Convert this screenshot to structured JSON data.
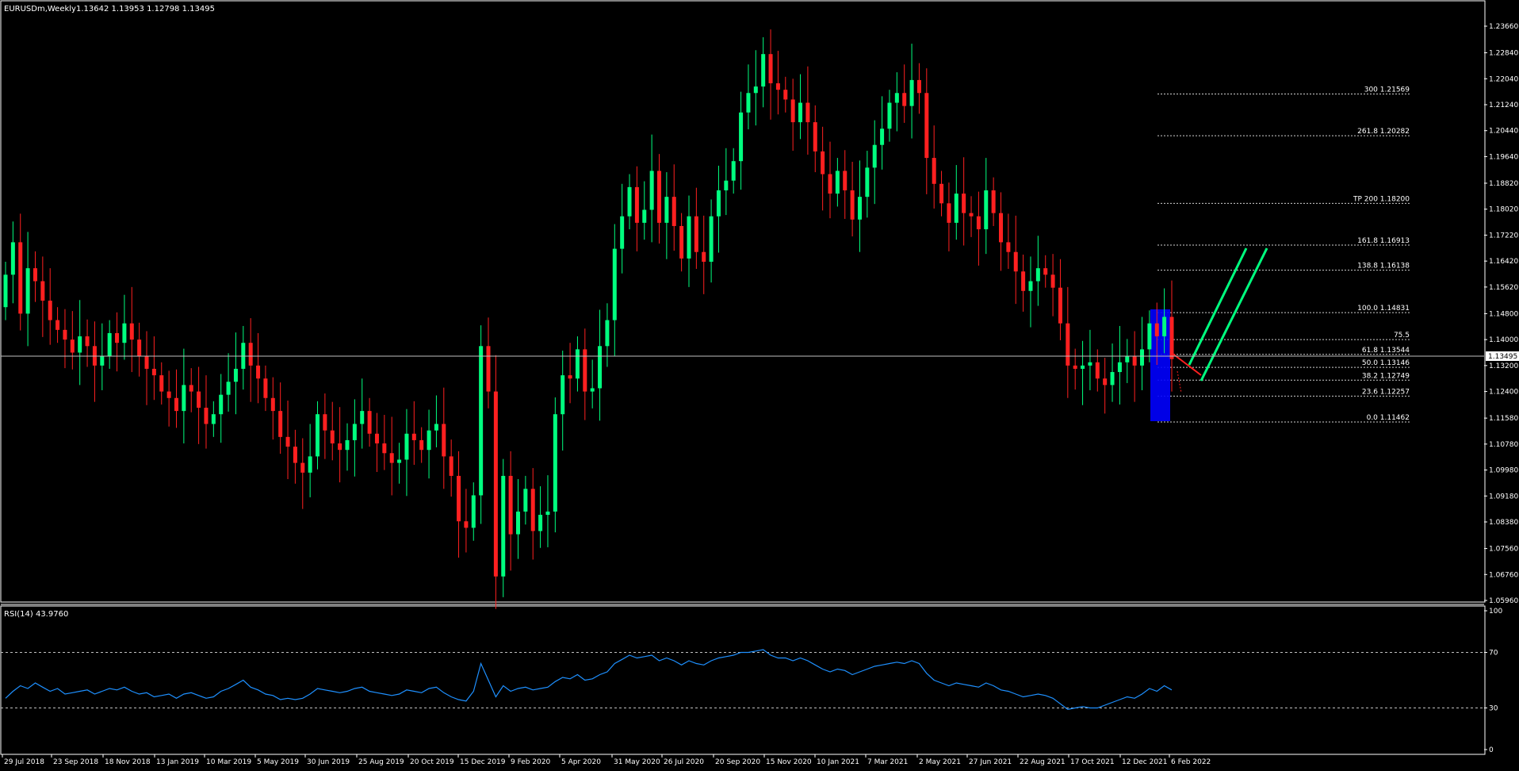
{
  "header": {
    "symbol_timeframe": "EURUSDm,Weekly",
    "ohlc": "1.13642 1.13953 1.12798 1.13495"
  },
  "price_axis": {
    "ticks": [
      "1.23660",
      "1.22840",
      "1.22040",
      "1.21240",
      "1.20440",
      "1.19640",
      "1.18820",
      "1.18020",
      "1.17220",
      "1.16420",
      "1.15620",
      "1.14800",
      "1.14000",
      "1.13200",
      "1.12400",
      "1.11580",
      "1.10780",
      "1.09980",
      "1.09180",
      "1.08380",
      "1.07560",
      "1.06760",
      "1.05960"
    ],
    "current_price": "1.13495"
  },
  "time_axis": {
    "labels": [
      "29 Jul 2018",
      "23 Sep 2018",
      "18 Nov 2018",
      "13 Jan 2019",
      "10 Mar 2019",
      "5 May 2019",
      "30 Jun 2019",
      "25 Aug 2019",
      "20 Oct 2019",
      "15 Dec 2019",
      "9 Feb 2020",
      "5 Apr 2020",
      "31 May 2020",
      "26 Jul 2020",
      "20 Sep 2020",
      "15 Nov 2020",
      "10 Jan 2021",
      "7 Mar 2021",
      "2 May 2021",
      "27 Jun 2021",
      "22 Aug 2021",
      "17 Oct 2021",
      "12 Dec 2021",
      "6 Feb 2022"
    ]
  },
  "fibonacci": {
    "levels": [
      {
        "label": "300 1.21569",
        "price": 1.21569
      },
      {
        "label": "261.8 1.20282",
        "price": 1.20282
      },
      {
        "label": "TP 200 1.18200",
        "price": 1.182
      },
      {
        "label": "161.8 1.16913",
        "price": 1.16913
      },
      {
        "label": "138.8 1.16138",
        "price": 1.16138
      },
      {
        "label": "100.0 1.14831",
        "price": 1.14831
      },
      {
        "label": "75.5",
        "price": 1.14
      },
      {
        "label": "61.8 1.13544",
        "price": 1.13544
      },
      {
        "label": "50.0 1.13146",
        "price": 1.13146
      },
      {
        "label": "38.2 1.12749",
        "price": 1.12749
      },
      {
        "label": "23.6 1.12257",
        "price": 1.12257
      },
      {
        "label": "0.0 1.11462",
        "price": 1.11462
      }
    ]
  },
  "rsi": {
    "label": "RSI(14) 43.9760",
    "axis_ticks": [
      "100",
      "70",
      "30",
      "0"
    ],
    "levels": [
      70,
      30
    ]
  },
  "colors": {
    "background": "#000000",
    "bull": "#00ff7f",
    "bear": "#ff2020",
    "rsi_line": "#1e90ff",
    "zone": "#0000ff",
    "arrow_up": "#00ff7f",
    "arrow_down": "#ff2020"
  },
  "chart_data": [
    {
      "type": "candlestick",
      "title": "EURUSDm,Weekly",
      "ylim": [
        1.0596,
        1.2366
      ],
      "x_range": [
        "29 Jul 2018",
        "6 Feb 2022"
      ],
      "close_path": [
        1.16,
        1.17,
        1.148,
        1.162,
        1.158,
        1.152,
        1.146,
        1.143,
        1.14,
        1.136,
        1.141,
        1.138,
        1.132,
        1.135,
        1.142,
        1.139,
        1.145,
        1.14,
        1.135,
        1.131,
        1.129,
        1.124,
        1.122,
        1.118,
        1.126,
        1.124,
        1.119,
        1.114,
        1.117,
        1.123,
        1.127,
        1.131,
        1.139,
        1.132,
        1.128,
        1.122,
        1.118,
        1.11,
        1.107,
        1.102,
        1.099,
        1.104,
        1.117,
        1.112,
        1.108,
        1.106,
        1.109,
        1.114,
        1.118,
        1.111,
        1.108,
        1.105,
        1.102,
        1.103,
        1.111,
        1.109,
        1.106,
        1.112,
        1.114,
        1.104,
        1.098,
        1.084,
        1.082,
        1.092,
        1.138,
        1.124,
        1.067,
        1.098,
        1.08,
        1.087,
        1.094,
        1.081,
        1.086,
        1.087,
        1.117,
        1.129,
        1.128,
        1.137,
        1.124,
        1.125,
        1.138,
        1.146,
        1.168,
        1.178,
        1.187,
        1.176,
        1.18,
        1.192,
        1.176,
        1.184,
        1.175,
        1.165,
        1.178,
        1.167,
        1.164,
        1.178,
        1.186,
        1.189,
        1.195,
        1.21,
        1.216,
        1.218,
        1.228,
        1.219,
        1.217,
        1.214,
        1.207,
        1.213,
        1.207,
        1.198,
        1.191,
        1.185,
        1.192,
        1.186,
        1.177,
        1.184,
        1.193,
        1.2,
        1.205,
        1.213,
        1.216,
        1.212,
        1.22,
        1.216,
        1.196,
        1.188,
        1.182,
        1.176,
        1.185,
        1.179,
        1.178,
        1.174,
        1.186,
        1.179,
        1.17,
        1.167,
        1.161,
        1.155,
        1.158,
        1.162,
        1.16,
        1.156,
        1.145,
        1.132,
        1.131,
        1.132,
        1.133,
        1.128,
        1.126,
        1.13,
        1.133,
        1.135,
        1.132,
        1.137,
        1.145,
        1.141,
        1.147,
        1.134
      ]
    },
    {
      "type": "line",
      "title": "RSI(14) 43.9760",
      "ylim": [
        0,
        100
      ],
      "values": [
        37,
        42,
        46,
        44,
        48,
        45,
        42,
        44,
        40,
        41,
        42,
        43,
        40,
        42,
        44,
        43,
        45,
        42,
        40,
        41,
        38,
        39,
        40,
        37,
        40,
        41,
        39,
        37,
        38,
        42,
        44,
        47,
        50,
        45,
        43,
        40,
        39,
        36,
        37,
        36,
        37,
        40,
        44,
        43,
        42,
        41,
        42,
        44,
        45,
        42,
        41,
        40,
        39,
        40,
        43,
        42,
        41,
        44,
        45,
        41,
        38,
        36,
        35,
        42,
        62,
        50,
        38,
        46,
        42,
        44,
        45,
        43,
        44,
        45,
        49,
        52,
        51,
        54,
        50,
        51,
        54,
        56,
        62,
        65,
        68,
        66,
        67,
        68,
        64,
        66,
        64,
        61,
        64,
        62,
        61,
        64,
        66,
        67,
        68,
        70,
        70,
        71,
        72,
        68,
        66,
        66,
        64,
        66,
        64,
        61,
        58,
        56,
        58,
        57,
        54,
        56,
        58,
        60,
        61,
        62,
        63,
        62,
        64,
        62,
        55,
        50,
        48,
        46,
        48,
        47,
        46,
        45,
        48,
        46,
        43,
        42,
        40,
        38,
        39,
        40,
        39,
        37,
        33,
        29,
        30,
        31,
        30,
        30,
        32,
        34,
        36,
        38,
        37,
        40,
        44,
        42,
        46,
        43
      ]
    }
  ]
}
